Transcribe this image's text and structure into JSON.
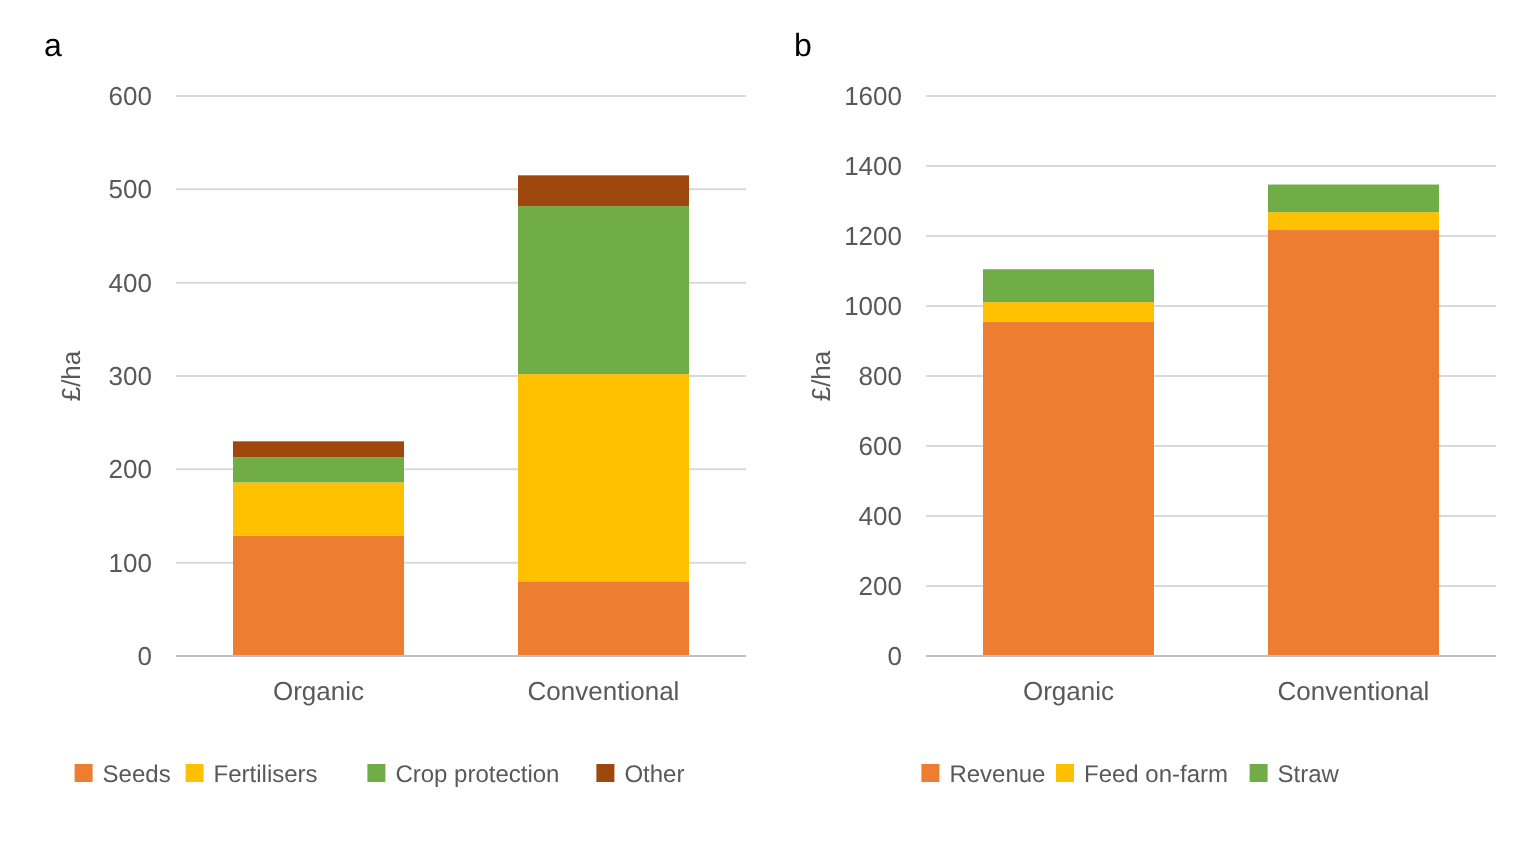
{
  "chart_data": [
    {
      "type": "bar",
      "title": "a",
      "ylabel": "£/ha",
      "categories": [
        "Organic",
        "Conventional"
      ],
      "stacked": true,
      "ylim": [
        0,
        600
      ],
      "yticks": [
        0,
        100,
        200,
        300,
        400,
        500,
        600
      ],
      "grid": "y",
      "legend": "bottom",
      "series": [
        {
          "name": "Seeds",
          "color": "#ed7d31",
          "values": [
            129,
            80
          ]
        },
        {
          "name": "Fertilisers",
          "color": "#ffc000",
          "values": [
            57,
            222
          ]
        },
        {
          "name": "Crop protection",
          "color": "#70ad47",
          "values": [
            27,
            180
          ]
        },
        {
          "name": "Other",
          "color": "#9e480e",
          "values": [
            17,
            33
          ]
        }
      ]
    },
    {
      "type": "bar",
      "title": "b",
      "ylabel": "£/ha",
      "categories": [
        "Organic",
        "Conventional"
      ],
      "stacked": true,
      "ylim": [
        0,
        1600
      ],
      "yticks": [
        0,
        200,
        400,
        600,
        800,
        1000,
        1200,
        1400,
        1600
      ],
      "grid": "y",
      "legend": "bottom",
      "series": [
        {
          "name": "Revenue",
          "color": "#ed7d31",
          "values": [
            955,
            1217
          ]
        },
        {
          "name": "Feed on-farm",
          "color": "#ffc000",
          "values": [
            56,
            51
          ]
        },
        {
          "name": "Straw",
          "color": "#70ad47",
          "values": [
            94,
            79
          ]
        }
      ]
    }
  ]
}
